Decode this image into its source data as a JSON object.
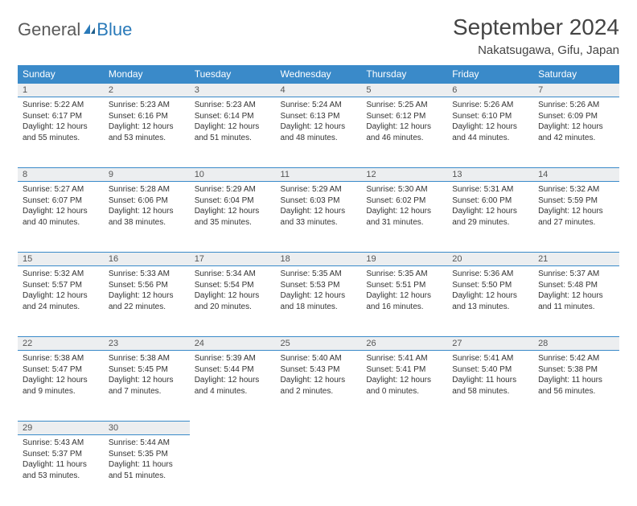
{
  "brand": {
    "part1": "General",
    "part2": "Blue"
  },
  "title": "September 2024",
  "location": "Nakatsugawa, Gifu, Japan",
  "colors": {
    "header_bg": "#3a8ac9",
    "header_text": "#ffffff",
    "daynum_bg": "#eceef0",
    "border": "#3a8ac9",
    "text": "#333333",
    "logo_gray": "#5a5a5a",
    "logo_blue": "#2a7ab9"
  },
  "weekdays": [
    "Sunday",
    "Monday",
    "Tuesday",
    "Wednesday",
    "Thursday",
    "Friday",
    "Saturday"
  ],
  "days": [
    {
      "n": "1",
      "sr": "Sunrise: 5:22 AM",
      "ss": "Sunset: 6:17 PM",
      "dl": "Daylight: 12 hours and 55 minutes."
    },
    {
      "n": "2",
      "sr": "Sunrise: 5:23 AM",
      "ss": "Sunset: 6:16 PM",
      "dl": "Daylight: 12 hours and 53 minutes."
    },
    {
      "n": "3",
      "sr": "Sunrise: 5:23 AM",
      "ss": "Sunset: 6:14 PM",
      "dl": "Daylight: 12 hours and 51 minutes."
    },
    {
      "n": "4",
      "sr": "Sunrise: 5:24 AM",
      "ss": "Sunset: 6:13 PM",
      "dl": "Daylight: 12 hours and 48 minutes."
    },
    {
      "n": "5",
      "sr": "Sunrise: 5:25 AM",
      "ss": "Sunset: 6:12 PM",
      "dl": "Daylight: 12 hours and 46 minutes."
    },
    {
      "n": "6",
      "sr": "Sunrise: 5:26 AM",
      "ss": "Sunset: 6:10 PM",
      "dl": "Daylight: 12 hours and 44 minutes."
    },
    {
      "n": "7",
      "sr": "Sunrise: 5:26 AM",
      "ss": "Sunset: 6:09 PM",
      "dl": "Daylight: 12 hours and 42 minutes."
    },
    {
      "n": "8",
      "sr": "Sunrise: 5:27 AM",
      "ss": "Sunset: 6:07 PM",
      "dl": "Daylight: 12 hours and 40 minutes."
    },
    {
      "n": "9",
      "sr": "Sunrise: 5:28 AM",
      "ss": "Sunset: 6:06 PM",
      "dl": "Daylight: 12 hours and 38 minutes."
    },
    {
      "n": "10",
      "sr": "Sunrise: 5:29 AM",
      "ss": "Sunset: 6:04 PM",
      "dl": "Daylight: 12 hours and 35 minutes."
    },
    {
      "n": "11",
      "sr": "Sunrise: 5:29 AM",
      "ss": "Sunset: 6:03 PM",
      "dl": "Daylight: 12 hours and 33 minutes."
    },
    {
      "n": "12",
      "sr": "Sunrise: 5:30 AM",
      "ss": "Sunset: 6:02 PM",
      "dl": "Daylight: 12 hours and 31 minutes."
    },
    {
      "n": "13",
      "sr": "Sunrise: 5:31 AM",
      "ss": "Sunset: 6:00 PM",
      "dl": "Daylight: 12 hours and 29 minutes."
    },
    {
      "n": "14",
      "sr": "Sunrise: 5:32 AM",
      "ss": "Sunset: 5:59 PM",
      "dl": "Daylight: 12 hours and 27 minutes."
    },
    {
      "n": "15",
      "sr": "Sunrise: 5:32 AM",
      "ss": "Sunset: 5:57 PM",
      "dl": "Daylight: 12 hours and 24 minutes."
    },
    {
      "n": "16",
      "sr": "Sunrise: 5:33 AM",
      "ss": "Sunset: 5:56 PM",
      "dl": "Daylight: 12 hours and 22 minutes."
    },
    {
      "n": "17",
      "sr": "Sunrise: 5:34 AM",
      "ss": "Sunset: 5:54 PM",
      "dl": "Daylight: 12 hours and 20 minutes."
    },
    {
      "n": "18",
      "sr": "Sunrise: 5:35 AM",
      "ss": "Sunset: 5:53 PM",
      "dl": "Daylight: 12 hours and 18 minutes."
    },
    {
      "n": "19",
      "sr": "Sunrise: 5:35 AM",
      "ss": "Sunset: 5:51 PM",
      "dl": "Daylight: 12 hours and 16 minutes."
    },
    {
      "n": "20",
      "sr": "Sunrise: 5:36 AM",
      "ss": "Sunset: 5:50 PM",
      "dl": "Daylight: 12 hours and 13 minutes."
    },
    {
      "n": "21",
      "sr": "Sunrise: 5:37 AM",
      "ss": "Sunset: 5:48 PM",
      "dl": "Daylight: 12 hours and 11 minutes."
    },
    {
      "n": "22",
      "sr": "Sunrise: 5:38 AM",
      "ss": "Sunset: 5:47 PM",
      "dl": "Daylight: 12 hours and 9 minutes."
    },
    {
      "n": "23",
      "sr": "Sunrise: 5:38 AM",
      "ss": "Sunset: 5:45 PM",
      "dl": "Daylight: 12 hours and 7 minutes."
    },
    {
      "n": "24",
      "sr": "Sunrise: 5:39 AM",
      "ss": "Sunset: 5:44 PM",
      "dl": "Daylight: 12 hours and 4 minutes."
    },
    {
      "n": "25",
      "sr": "Sunrise: 5:40 AM",
      "ss": "Sunset: 5:43 PM",
      "dl": "Daylight: 12 hours and 2 minutes."
    },
    {
      "n": "26",
      "sr": "Sunrise: 5:41 AM",
      "ss": "Sunset: 5:41 PM",
      "dl": "Daylight: 12 hours and 0 minutes."
    },
    {
      "n": "27",
      "sr": "Sunrise: 5:41 AM",
      "ss": "Sunset: 5:40 PM",
      "dl": "Daylight: 11 hours and 58 minutes."
    },
    {
      "n": "28",
      "sr": "Sunrise: 5:42 AM",
      "ss": "Sunset: 5:38 PM",
      "dl": "Daylight: 11 hours and 56 minutes."
    },
    {
      "n": "29",
      "sr": "Sunrise: 5:43 AM",
      "ss": "Sunset: 5:37 PM",
      "dl": "Daylight: 11 hours and 53 minutes."
    },
    {
      "n": "30",
      "sr": "Sunrise: 5:44 AM",
      "ss": "Sunset: 5:35 PM",
      "dl": "Daylight: 11 hours and 51 minutes."
    }
  ],
  "layout": {
    "first_weekday_index": 0,
    "total_days": 30,
    "columns": 7
  }
}
